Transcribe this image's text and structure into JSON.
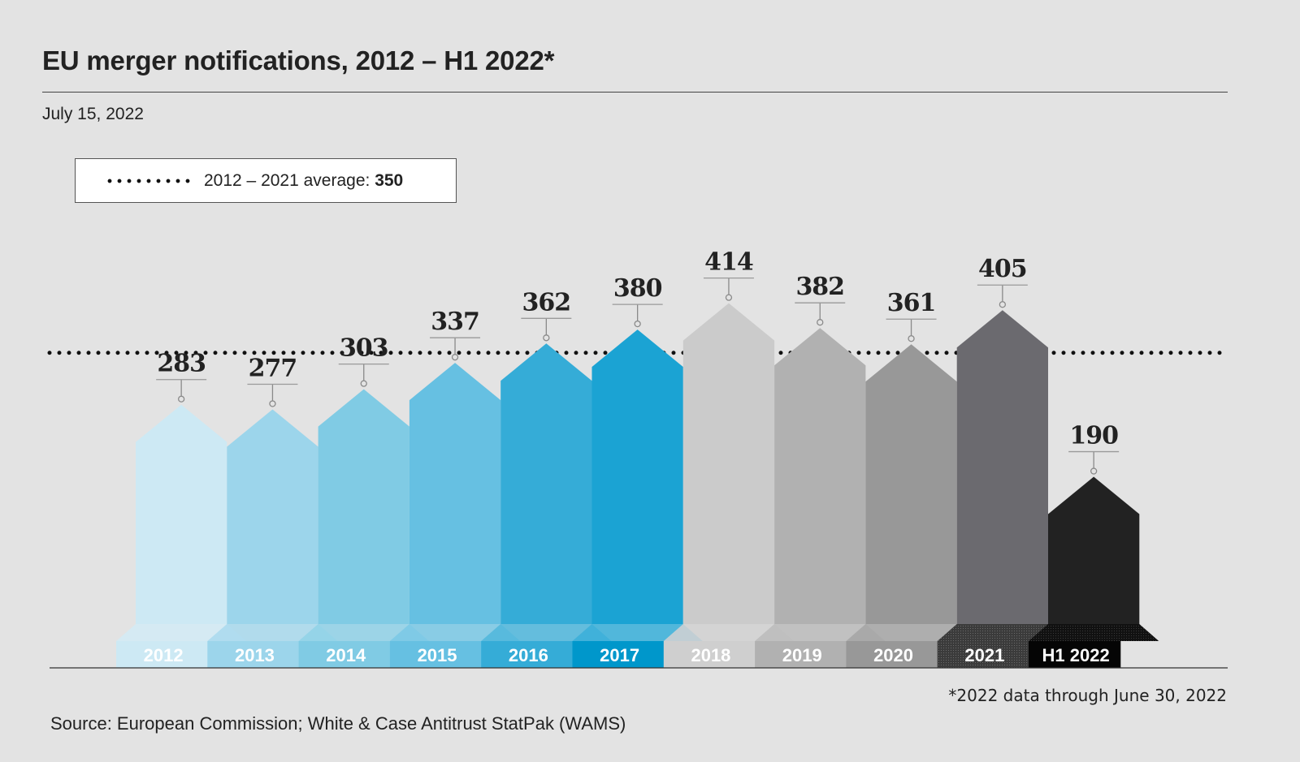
{
  "title": "EU merger notifications, 2012 – H1 2022*",
  "date": "July 15, 2022",
  "legend": {
    "label": "2012 – 2021 average: ",
    "value": "350",
    "marker": "dotted-line"
  },
  "footnote": "*2022 data through June 30, 2022",
  "source": "Source: European Commission; White & Case Antitrust StatPak (WAMS)",
  "chart_data": {
    "type": "bar",
    "title": "EU merger notifications, 2012 – H1 2022*",
    "xlabel": "",
    "ylabel": "",
    "categories": [
      "2012",
      "2013",
      "2014",
      "2015",
      "2016",
      "2017",
      "2018",
      "2019",
      "2020",
      "2021",
      "H1 2022"
    ],
    "values": [
      283,
      277,
      303,
      337,
      362,
      380,
      414,
      382,
      361,
      405,
      190
    ],
    "data_labels": [
      "283",
      "277",
      "303",
      "337",
      "362",
      "380",
      "414",
      "382",
      "361",
      "405",
      "190"
    ],
    "colors": [
      "#cde9f4",
      "#9cd5eb",
      "#80cbe4",
      "#66c0e2",
      "#35acd7",
      "#1ba3d3",
      "#cbcbcb",
      "#b1b1b1",
      "#989898",
      "#6b6a6f",
      "#222222"
    ],
    "label_band_colors": [
      "#cde9f4",
      "#9cd5eb",
      "#80cbe4",
      "#66c0e2",
      "#35acd7",
      "#0097cb",
      "#cfcfcf",
      "#b1b1b1",
      "#989898",
      "#3a3a3a",
      "#050505"
    ],
    "reference_lines": [
      {
        "label": "2012 – 2021 average",
        "value": 350,
        "style": "dotted"
      }
    ],
    "ylim": [
      0,
      430
    ],
    "grid": false,
    "legend_position": "top-left"
  }
}
